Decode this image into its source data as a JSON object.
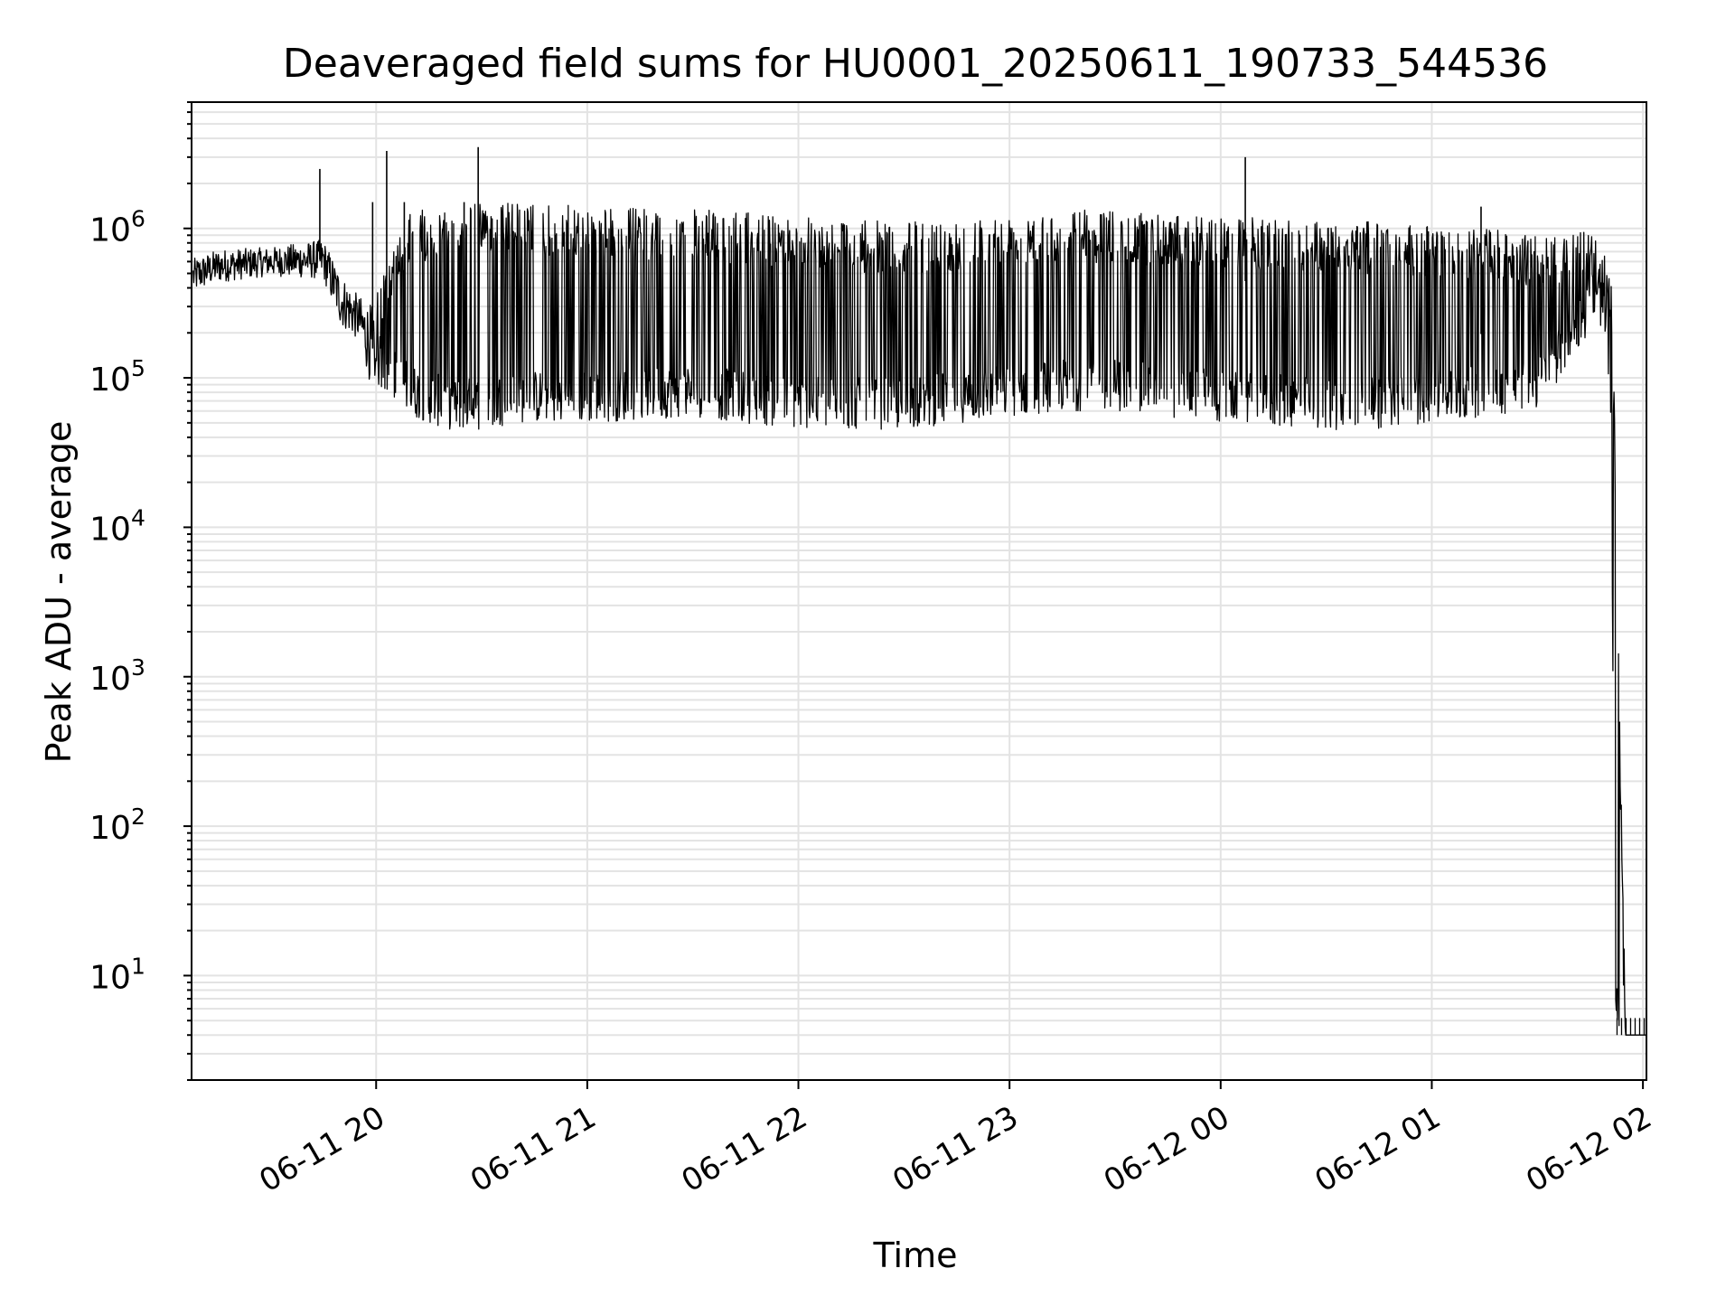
{
  "chart_data": {
    "type": "line",
    "title": "Deaveraged field sums for HU0001_20250611_190733_544536",
    "xlabel": "Time",
    "ylabel": "Peak ADU - average",
    "yscale": "log",
    "grid": true,
    "legend": "none",
    "xlim": [
      "2025-06-11 19:07:33",
      "2025-06-12 02:01:00"
    ],
    "ylim": [
      2,
      7000000
    ],
    "x_ticks": [
      "06-11 20",
      "06-11 21",
      "06-11 22",
      "06-11 23",
      "06-12 00",
      "06-12 01",
      "06-12 02"
    ],
    "y_ticks": [
      {
        "base": "10",
        "exp": "1"
      },
      {
        "base": "10",
        "exp": "2"
      },
      {
        "base": "10",
        "exp": "3"
      },
      {
        "base": "10",
        "exp": "4"
      },
      {
        "base": "10",
        "exp": "5"
      },
      {
        "base": "10",
        "exp": "6"
      }
    ],
    "colors": {
      "line": "#000000",
      "grid": "#e3e3e3",
      "axes": "#000000"
    },
    "series": [
      {
        "envelope": {
          "x": [
            "2025-06-11 19:08",
            "2025-06-11 19:15",
            "2025-06-11 19:30",
            "2025-06-11 19:45",
            "2025-06-11 19:50",
            "2025-06-11 19:55",
            "2025-06-11 20:00",
            "2025-06-11 20:10",
            "2025-06-11 20:20",
            "2025-06-11 20:30",
            "2025-06-11 20:40",
            "2025-06-11 21:00",
            "2025-06-11 21:30",
            "2025-06-11 22:00",
            "2025-06-11 22:30",
            "2025-06-11 23:00",
            "2025-06-11 23:15",
            "2025-06-11 23:30",
            "2025-06-12 00:00",
            "2025-06-12 00:30",
            "2025-06-12 00:45",
            "2025-06-12 01:00",
            "2025-06-12 01:15",
            "2025-06-12 01:30",
            "2025-06-12 01:45",
            "2025-06-12 01:48",
            "2025-06-12 01:51",
            "2025-06-12 01:52",
            "2025-06-12 01:55",
            "2025-06-12 02:01"
          ],
          "upper": [
            600000,
            700000,
            700000,
            650000,
            400000,
            300000,
            400000,
            1300000,
            1400000,
            1500000,
            1500000,
            1400000,
            1350000,
            1200000,
            1100000,
            1250000,
            1350000,
            1300000,
            1200000,
            1150000,
            1100000,
            1050000,
            1000000,
            900000,
            950000,
            900000,
            500000,
            50000,
            4,
            4
          ],
          "baseline": [
            480000,
            560000,
            600000,
            620000,
            330000,
            250000,
            140000,
            90000,
            70000,
            65000,
            100000,
            600000,
            700000,
            650000,
            650000,
            750000,
            850000,
            800000,
            500000,
            300000,
            250000,
            150000,
            200000,
            350000,
            700000,
            800000,
            300000,
            40000,
            4,
            4
          ],
          "lower": [
            350000,
            420000,
            450000,
            350000,
            180000,
            150000,
            90000,
            55000,
            45000,
            45000,
            50000,
            50000,
            55000,
            45000,
            45000,
            55000,
            60000,
            60000,
            50000,
            45000,
            45000,
            50000,
            55000,
            60000,
            200000,
            220000,
            40000,
            4,
            4,
            4
          ]
        },
        "spikes": [
          {
            "x": "2025-06-11 19:44",
            "y": 2500000
          },
          {
            "x": "2025-06-11 19:59",
            "y": 1500000
          },
          {
            "x": "2025-06-11 20:03",
            "y": 3300000
          },
          {
            "x": "2025-06-11 20:08",
            "y": 1500000
          },
          {
            "x": "2025-06-11 20:25",
            "y": 1500000
          },
          {
            "x": "2025-06-11 20:29",
            "y": 3500000
          },
          {
            "x": "2025-06-12 00:07",
            "y": 3000000
          },
          {
            "x": "2025-06-12 01:14",
            "y": 1400000
          }
        ]
      }
    ]
  }
}
